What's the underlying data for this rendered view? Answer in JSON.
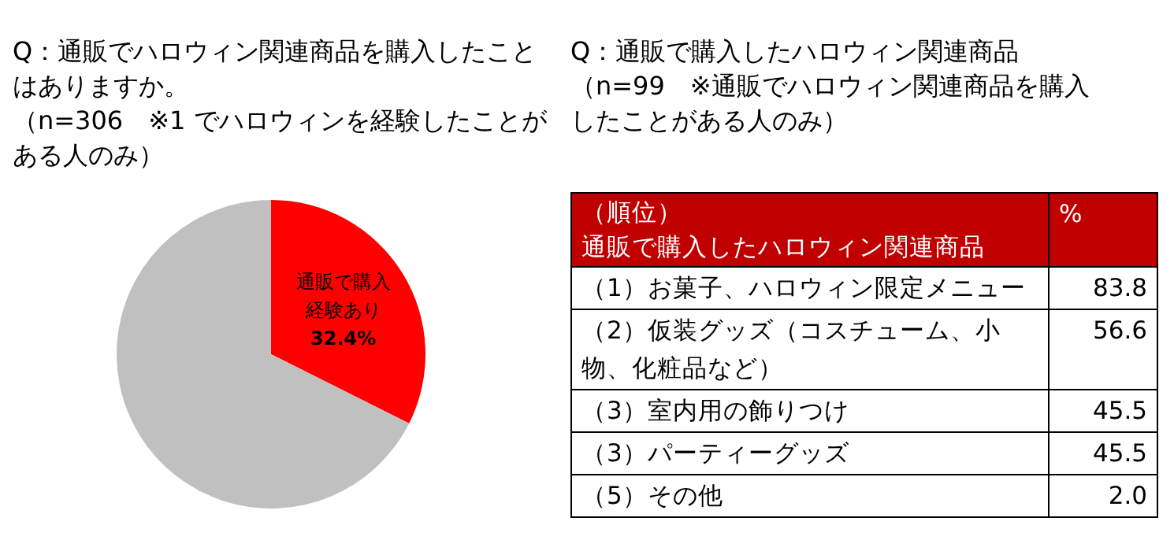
{
  "chart_data": [
    {
      "type": "pie",
      "title": "Q：通販でハロウィン関連商品を購入したことはありますか。",
      "subtitle": "（n=306　※1 でハロウィンを経験したことがある人のみ）",
      "categories": [
        "通販で購入経験あり",
        null
      ],
      "values": [
        32.4,
        67.6
      ],
      "colors": [
        "#ff0000",
        "#c0c0c0"
      ],
      "value_labels": [
        "32.4%",
        null
      ]
    },
    {
      "type": "other",
      "title": "Q：通販で購入したハロウィン関連商品",
      "subtitle": "（n=99　※通販でハロウィン関連商品を購入したことがある人のみ）",
      "annotations": [
        "（順位）",
        "通販で購入したハロウィン関連商品",
        "%"
      ],
      "categories": [
        "（1）お菓子、ハロウィン限定メニュー",
        "（2）仮装グッズ（コスチューム、小物、化粧品など）",
        "（3）室内用の飾りつけ",
        "（3）パーティーグッズ",
        "（5）その他"
      ],
      "values": [
        83.8,
        56.6,
        45.5,
        45.5,
        2.0
      ],
      "value_labels": [
        "83.8",
        "56.6",
        "45.5",
        "45.5",
        "2.0"
      ]
    }
  ]
}
